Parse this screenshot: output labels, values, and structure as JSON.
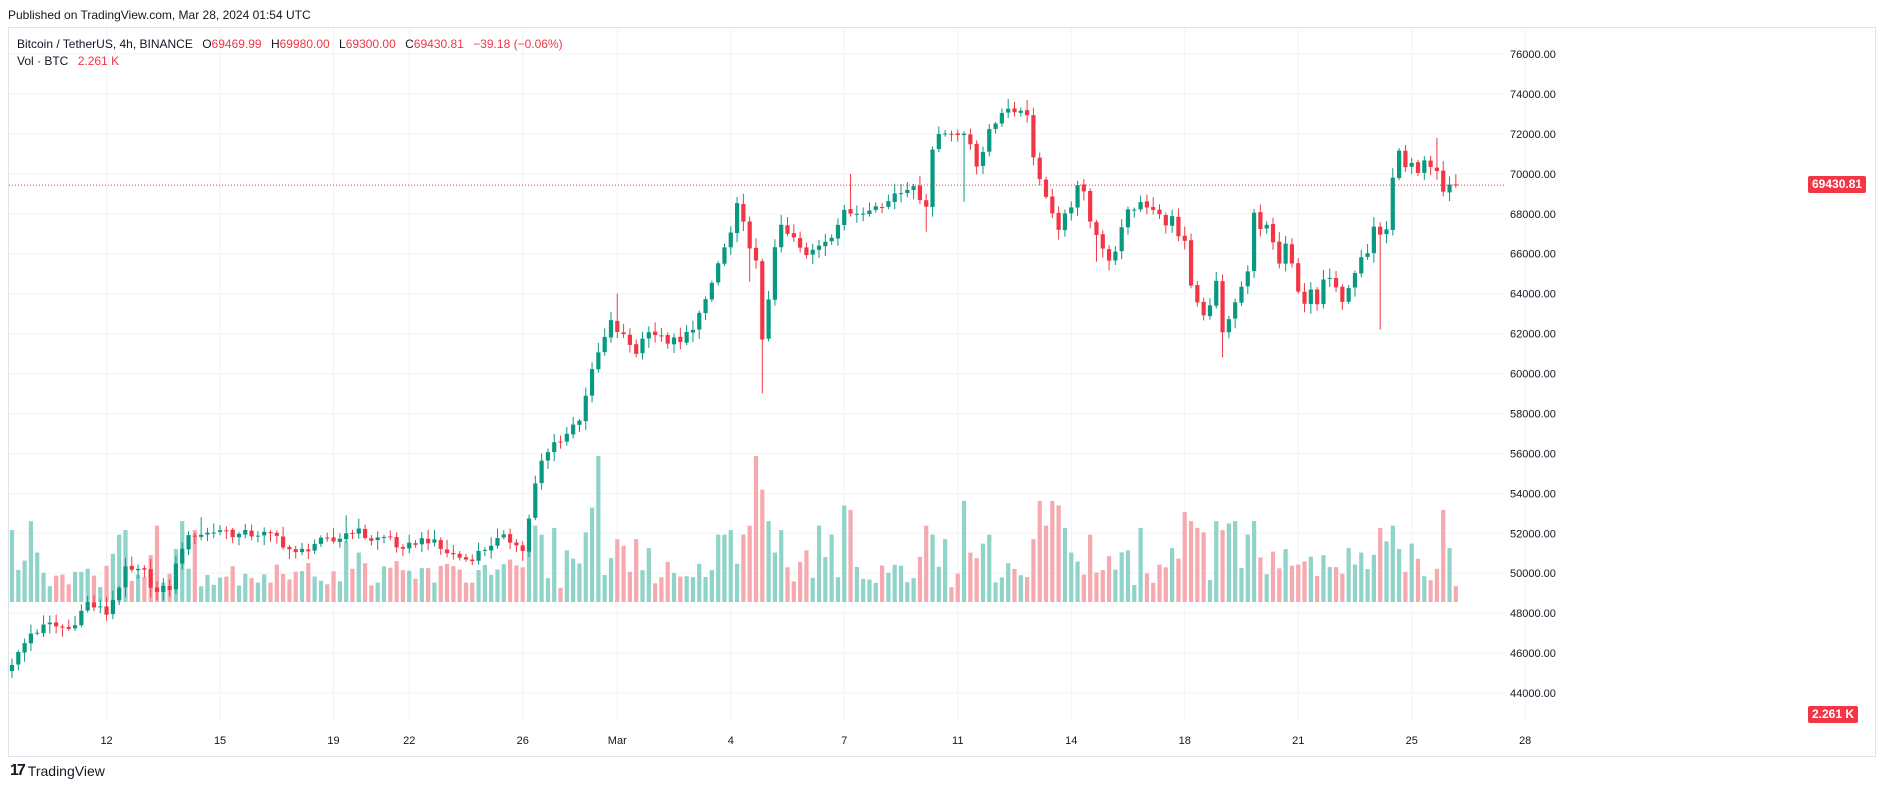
{
  "header": {
    "published": "Published on TradingView.com, Mar 28, 2024 01:54 UTC"
  },
  "legend": {
    "symbol": "Bitcoin / TetherUS, 4h, BINANCE",
    "o_label": "O",
    "o_value": "69469.99",
    "h_label": "H",
    "h_value": "69980.00",
    "l_label": "L",
    "l_value": "69300.00",
    "c_label": "C",
    "c_value": "69430.81",
    "change": "−39.18 (−0.06%)",
    "vol_label": "Vol · BTC",
    "vol_value": "2.261 K"
  },
  "footer": {
    "logo": "17",
    "brand": "TradingView"
  },
  "colors": {
    "up": "#089981",
    "down": "#f23645",
    "vol_up": "#8fd3c9",
    "vol_down": "#f6a9ae",
    "grid": "#f0f3fa",
    "price_line": "#f23645"
  },
  "chart_data": {
    "type": "candlestick",
    "symbol": "BTCUSDT",
    "interval": "4h",
    "y_axis": {
      "min": 44000,
      "max": 76000,
      "ticks": [
        "76000.00",
        "74000.00",
        "72000.00",
        "70000.00",
        "68000.00",
        "66000.00",
        "64000.00",
        "62000.00",
        "60000.00",
        "58000.00",
        "56000.00",
        "54000.00",
        "52000.00",
        "50000.00",
        "48000.00",
        "46000.00",
        "44000.00"
      ]
    },
    "x_axis": {
      "tick_labels": [
        "12",
        "15",
        "19",
        "22",
        "26",
        "Mar",
        "4",
        "7",
        "11",
        "14",
        "18",
        "21",
        "25",
        "28"
      ],
      "tick_candle_index": [
        15,
        33,
        51,
        63,
        81,
        96,
        114,
        132,
        150,
        168,
        186,
        204,
        222,
        240
      ]
    },
    "last_price_label": "69430.81",
    "last_price": 69430.81,
    "last_volume_label": "2.261 K",
    "volume_max_k": 6.5,
    "anchors": [
      [
        0,
        45400
      ],
      [
        3,
        47000
      ],
      [
        6,
        47400
      ],
      [
        9,
        47200
      ],
      [
        12,
        48500
      ],
      [
        15,
        48000
      ],
      [
        18,
        50100
      ],
      [
        21,
        50000
      ],
      [
        23,
        49000
      ],
      [
        25,
        49300
      ],
      [
        27,
        51400
      ],
      [
        29,
        52000
      ],
      [
        31,
        52000
      ],
      [
        33,
        52200
      ],
      [
        36,
        51900
      ],
      [
        39,
        52000
      ],
      [
        42,
        51800
      ],
      [
        45,
        50900
      ],
      [
        48,
        51500
      ],
      [
        51,
        51600
      ],
      [
        54,
        52200
      ],
      [
        57,
        51700
      ],
      [
        60,
        51800
      ],
      [
        62,
        51000
      ],
      [
        64,
        51600
      ],
      [
        66,
        51700
      ],
      [
        68,
        51200
      ],
      [
        70,
        50900
      ],
      [
        72,
        50700
      ],
      [
        74,
        51000
      ],
      [
        76,
        51500
      ],
      [
        78,
        51700
      ],
      [
        80,
        51600
      ],
      [
        81,
        51100
      ],
      [
        82,
        52800
      ],
      [
        83,
        54400
      ],
      [
        84,
        55500
      ],
      [
        86,
        56500
      ],
      [
        88,
        57000
      ],
      [
        90,
        57800
      ],
      [
        91,
        59000
      ],
      [
        93,
        61000
      ],
      [
        95,
        62500
      ],
      [
        97,
        61800
      ],
      [
        99,
        61100
      ],
      [
        101,
        62300
      ],
      [
        103,
        61700
      ],
      [
        105,
        61600
      ],
      [
        106,
        61500
      ],
      [
        108,
        62400
      ],
      [
        110,
        63500
      ],
      [
        112,
        65500
      ],
      [
        114,
        67000
      ],
      [
        115,
        68300
      ],
      [
        117,
        66500
      ],
      [
        118,
        65500
      ],
      [
        119,
        61500
      ],
      [
        120,
        63800
      ],
      [
        121,
        66500
      ],
      [
        122,
        67200
      ],
      [
        124,
        66700
      ],
      [
        126,
        65800
      ],
      [
        128,
        66500
      ],
      [
        130,
        67000
      ],
      [
        132,
        68000
      ],
      [
        134,
        68100
      ],
      [
        136,
        68400
      ],
      [
        138,
        68300
      ],
      [
        140,
        69100
      ],
      [
        142,
        69400
      ],
      [
        144,
        68900
      ],
      [
        145,
        68500
      ],
      [
        146,
        71200
      ],
      [
        147,
        72000
      ],
      [
        149,
        72200
      ],
      [
        151,
        71800
      ],
      [
        152,
        71500
      ],
      [
        153,
        70500
      ],
      [
        155,
        72000
      ],
      [
        157,
        73200
      ],
      [
        159,
        73300
      ],
      [
        161,
        73000
      ],
      [
        162,
        71000
      ],
      [
        163,
        69600
      ],
      [
        164,
        69000
      ],
      [
        165,
        68000
      ],
      [
        166,
        67000
      ],
      [
        167,
        67800
      ],
      [
        169,
        69200
      ],
      [
        170,
        69000
      ],
      [
        171,
        67800
      ],
      [
        172,
        67100
      ],
      [
        173,
        66300
      ],
      [
        174,
        65500
      ],
      [
        175,
        66300
      ],
      [
        177,
        68000
      ],
      [
        179,
        68600
      ],
      [
        181,
        68300
      ],
      [
        182,
        68100
      ],
      [
        183,
        67300
      ],
      [
        184,
        67800
      ],
      [
        185,
        67000
      ],
      [
        186,
        66500
      ],
      [
        187,
        64400
      ],
      [
        188,
        63500
      ],
      [
        189,
        62800
      ],
      [
        191,
        64500
      ],
      [
        192,
        62000
      ],
      [
        193,
        62500
      ],
      [
        194,
        63400
      ],
      [
        196,
        65000
      ],
      [
        197,
        67900
      ],
      [
        198,
        67200
      ],
      [
        199,
        67500
      ],
      [
        200,
        66500
      ],
      [
        201,
        65500
      ],
      [
        202,
        66300
      ],
      [
        203,
        65400
      ],
      [
        204,
        64300
      ],
      [
        205,
        63600
      ],
      [
        206,
        64000
      ],
      [
        207,
        63400
      ],
      [
        208,
        64500
      ],
      [
        209,
        65000
      ],
      [
        210,
        64500
      ],
      [
        211,
        63800
      ],
      [
        212,
        64500
      ],
      [
        214,
        65800
      ],
      [
        215,
        66000
      ],
      [
        216,
        67400
      ],
      [
        217,
        67000
      ],
      [
        218,
        67000
      ],
      [
        219,
        70000
      ],
      [
        220,
        71000
      ],
      [
        221,
        70200
      ],
      [
        222,
        70300
      ],
      [
        223,
        69900
      ],
      [
        224,
        70500
      ],
      [
        225,
        70300
      ],
      [
        226,
        70200
      ],
      [
        227,
        69100
      ],
      [
        228,
        69470
      ],
      [
        229,
        69431
      ]
    ],
    "spikes": {
      "30": [
        52800,
        0
      ],
      "53": [
        52900,
        0
      ],
      "93": [
        0,
        0
      ],
      "96": [
        64000,
        0
      ],
      "119": [
        0,
        59000
      ],
      "116": [
        69000,
        0
      ],
      "117": [
        0,
        64600
      ],
      "133": [
        70000,
        0
      ],
      "161": [
        73700,
        0
      ],
      "151": [
        0,
        68600
      ],
      "145": [
        0,
        67100
      ],
      "172": [
        0,
        65600
      ],
      "192": [
        0,
        60800
      ],
      "217": [
        0,
        62200
      ],
      "226": [
        71800,
        0
      ]
    },
    "volume_spikes": {
      "0": 3.2,
      "3": 3.6,
      "4": 2.2,
      "17": 3.0,
      "18": 3.2,
      "23": 3.4,
      "27": 3.6,
      "29": 3.2,
      "53": 2.7,
      "55": 2.2,
      "83": 3.4,
      "84": 3.0,
      "86": 3.3,
      "88": 2.3,
      "91": 3.1,
      "92": 4.2,
      "93": 8.0,
      "96": 2.8,
      "97": 2.5,
      "99": 2.8,
      "101": 2.4,
      "112": 3.0,
      "113": 3.0,
      "114": 3.2,
      "116": 3.0,
      "117": 3.4,
      "118": 8.0,
      "119": 5.0,
      "120": 3.6,
      "121": 2.2,
      "122": 3.2,
      "126": 2.3,
      "128": 3.4,
      "129": 2.0,
      "130": 3.0,
      "132": 4.3,
      "133": 4.1,
      "145": 3.4,
      "146": 3.0,
      "148": 2.8,
      "151": 4.5,
      "152": 2.2,
      "154": 2.6,
      "155": 3.0,
      "162": 2.8,
      "163": 4.5,
      "164": 3.4,
      "165": 4.5,
      "166": 4.3,
      "167": 3.3,
      "168": 2.2,
      "171": 3.0,
      "177": 2.3,
      "179": 3.3,
      "184": 2.4,
      "186": 4.0,
      "187": 3.6,
      "188": 3.3,
      "189": 3.1,
      "191": 3.6,
      "192": 3.2,
      "193": 3.5,
      "194": 3.6,
      "196": 3.0,
      "212": 2.4,
      "217": 3.3,
      "218": 2.7,
      "219": 3.4,
      "222": 2.6,
      "227": 4.1,
      "228": 2.4
    }
  }
}
